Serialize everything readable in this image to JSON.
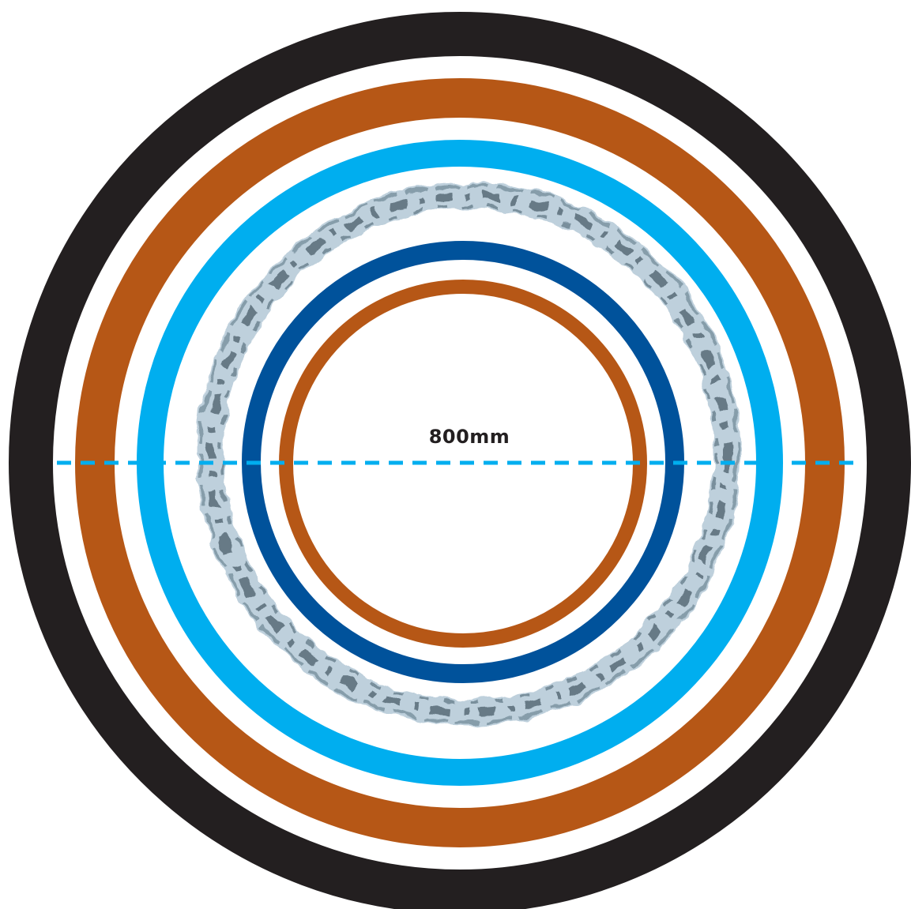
{
  "diagram": {
    "dimension_label": "800mm",
    "colors": {
      "background": "#ffffff",
      "outer_ring": "#231f20",
      "copper_ring": "#b65716",
      "light_blue_ring": "#00aeef",
      "water_ring": "#9fb8c8",
      "water_ring_dark": "#3d4e5a",
      "dark_blue_ring": "#00529b",
      "inner_copper_ring": "#b65716",
      "dimension_line": "#00aeef",
      "label_text": "#231f20"
    },
    "icons": {
      "water": "water-splash-icon"
    }
  }
}
